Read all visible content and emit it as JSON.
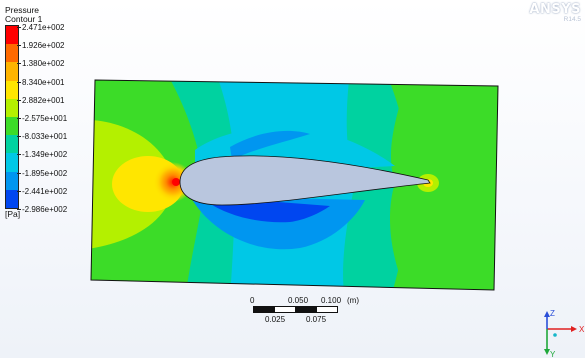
{
  "legend": {
    "title_line1": "Pressure",
    "title_line2": "Contour 1",
    "unit": "[Pa]",
    "labels": [
      "2.471e+002",
      "1.926e+002",
      "1.380e+002",
      "8.340e+001",
      "2.882e+001",
      "-2.575e+001",
      "-8.033e+001",
      "-1.349e+002",
      "-1.895e+002",
      "-2.441e+002",
      "-2.986e+002"
    ],
    "colors": [
      "#ff0000",
      "#ff6a00",
      "#ffb400",
      "#ffe600",
      "#b4f000",
      "#3cdc28",
      "#00d2a0",
      "#00c8e6",
      "#0096f0",
      "#0046f0"
    ]
  },
  "brand": {
    "name": "ANSYS",
    "release": "R14.5"
  },
  "scale_bar": {
    "top_labels": [
      "0",
      "0.050",
      "0.100"
    ],
    "unit": "(m)",
    "bottom_labels": [
      "0.025",
      "0.075"
    ]
  },
  "triad": {
    "x_label": "X",
    "y_label": "Y",
    "z_label": "Z"
  },
  "colors": {
    "airfoil": "#b9c6de",
    "frame": "#111111"
  }
}
